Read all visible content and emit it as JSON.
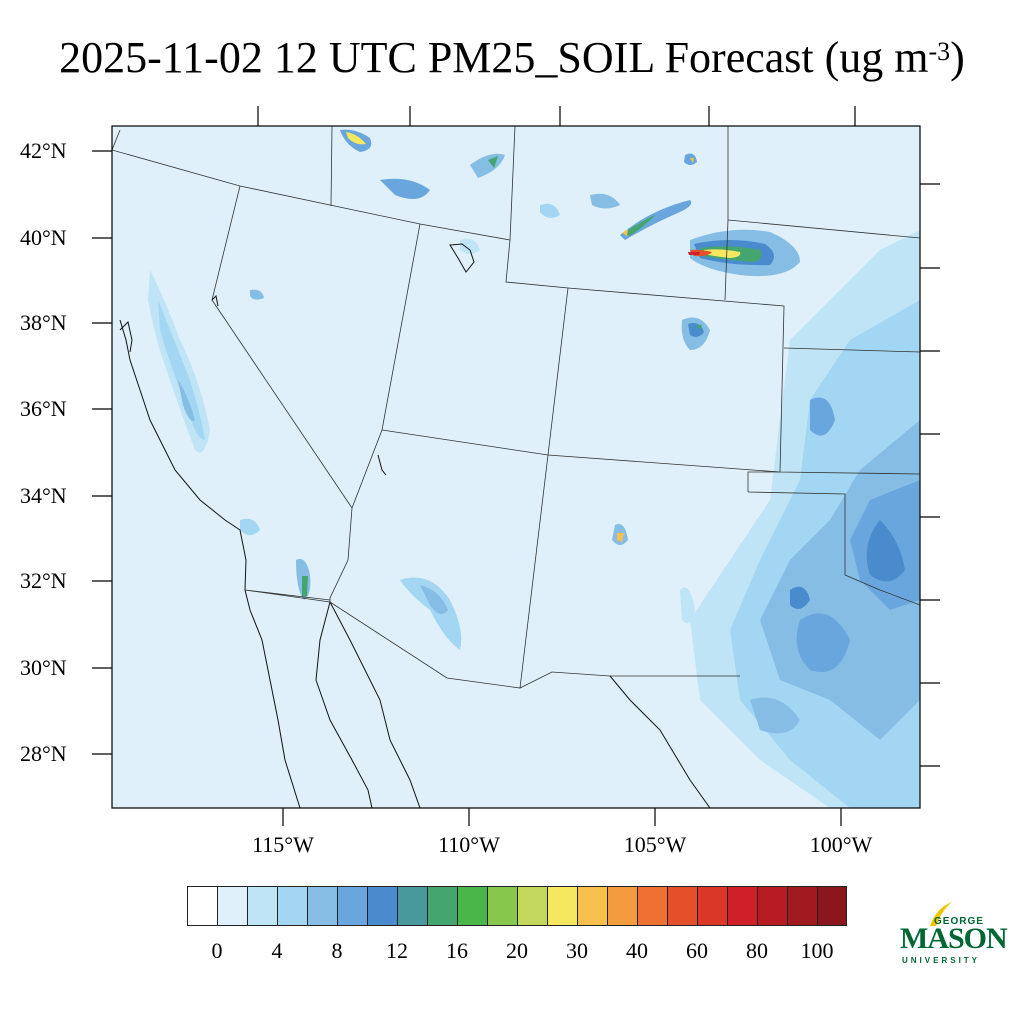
{
  "title": {
    "main": "2025-11-02 12 UTC PM25_SOIL Forecast (ug m",
    "superscript": "-3",
    "closing": ")"
  },
  "map": {
    "projection": "lambert-conformal",
    "background_color": "#dff0fa",
    "boundary_color": "#333333",
    "lat_labels": [
      "42°N",
      "40°N",
      "38°N",
      "36°N",
      "34°N",
      "32°N",
      "30°N",
      "28°N"
    ],
    "lon_labels": [
      "115°W",
      "110°W",
      "105°W",
      "100°W"
    ]
  },
  "colorbar": {
    "colors": [
      "#ffffff",
      "#dff0fa",
      "#bfe4f5",
      "#a3d6f2",
      "#85bde5",
      "#69a6dd",
      "#4a8bcd",
      "#469a9c",
      "#45a56f",
      "#4ab649",
      "#86c74c",
      "#c3d85a",
      "#f6e85e",
      "#f7c04c",
      "#f49c3d",
      "#ef7131",
      "#e5502c",
      "#db3728",
      "#d11f29",
      "#b71c22",
      "#a01a20",
      "#8c161d"
    ],
    "labels": [
      "0",
      "4",
      "8",
      "12",
      "16",
      "20",
      "30",
      "40",
      "60",
      "80",
      "100"
    ]
  },
  "logo": {
    "line1": "GEORGE",
    "line2": "MASON",
    "line3": "UNIVERSITY",
    "color": "#006633",
    "accent_color": "#f2c400"
  }
}
